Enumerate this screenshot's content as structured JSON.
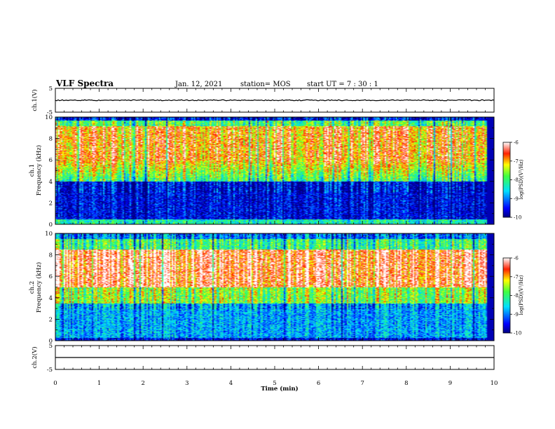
{
  "header": {
    "title": "VLF Spectra",
    "date": "Jan. 12, 2021",
    "station": "station= MOS",
    "start": "start  UT =   7 : 30 : 1"
  },
  "chart_data": [
    {
      "type": "line",
      "id": "ch1-waveform",
      "ylabel": "ch.1(V)",
      "ylim": [
        -5,
        5
      ],
      "yticks": [
        "5",
        "-5"
      ],
      "x": [
        0,
        10
      ],
      "values": [
        0,
        0
      ]
    },
    {
      "type": "heatmap",
      "id": "ch1-spectrogram",
      "ylabel_line1": "ch.1",
      "ylabel_line2": "Frequency (kHz)",
      "ylim": [
        0,
        10
      ],
      "yticks": [
        "0",
        "2",
        "4",
        "6",
        "8",
        "10"
      ],
      "xlim": [
        0,
        10
      ],
      "colorbar": {
        "label": "log(PSD)(V²/Hz)",
        "range": [
          -10,
          -6
        ],
        "ticks": [
          "-6",
          "-7",
          "-8",
          "-9",
          "-10"
        ]
      }
    },
    {
      "type": "heatmap",
      "id": "ch2-spectrogram",
      "ylabel_line1": "ch.2",
      "ylabel_line2": "Frequency (kHz)",
      "ylim": [
        0,
        10
      ],
      "yticks": [
        "0",
        "2",
        "4",
        "6",
        "8",
        "10"
      ],
      "xlim": [
        0,
        10
      ],
      "colorbar": {
        "label": "log(PSD)(V²/Hz)",
        "range": [
          -10,
          -6
        ],
        "ticks": [
          "-6",
          "-7",
          "-8",
          "-9",
          "-10"
        ]
      }
    },
    {
      "type": "line",
      "id": "ch2-waveform",
      "ylabel": "ch.2(V)",
      "ylim": [
        -5,
        5
      ],
      "yticks": [
        "5",
        "-5"
      ],
      "x": [
        0,
        10
      ],
      "values": [
        0,
        0
      ]
    }
  ],
  "xaxis": {
    "label": "Time (min)",
    "ticks": [
      "0",
      "1",
      "2",
      "3",
      "4",
      "5",
      "6",
      "7",
      "8",
      "9",
      "10"
    ]
  }
}
